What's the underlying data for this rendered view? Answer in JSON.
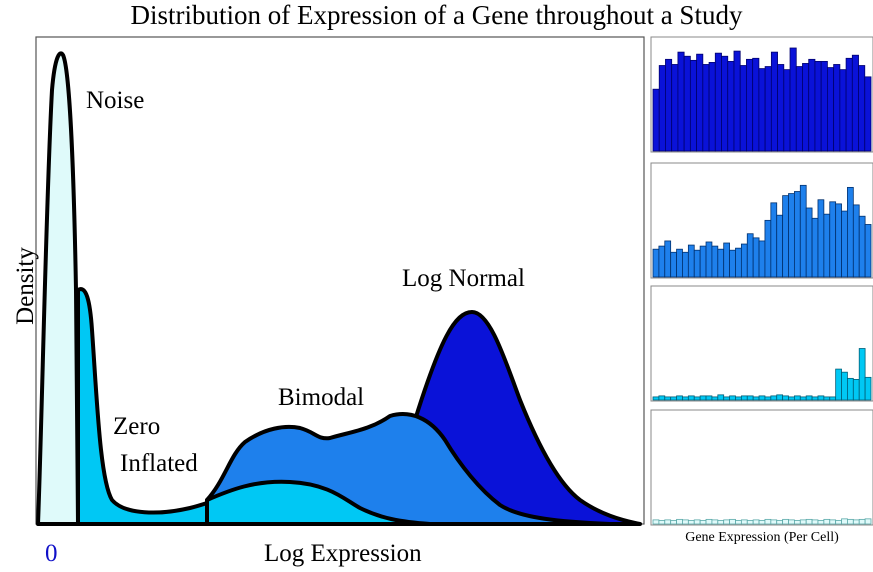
{
  "title": "Distribution of Expression of a Gene throughout a Study",
  "axes": {
    "y_label": "Density",
    "x_label": "Log Expression",
    "x_origin_tick": "0"
  },
  "curve_labels": {
    "noise": "Noise",
    "zero_inflated_line1": "Zero",
    "zero_inflated_line2": "Inflated",
    "bimodal": "Bimodal",
    "log_normal": "Log Normal"
  },
  "histogram_panel": {
    "x_label": "Gene Expression (Per Cell)"
  },
  "colors": {
    "noise": "#dffafa",
    "zero_inflated": "#00c8f4",
    "bimodal": "#1e80ec",
    "log_normal": "#0a12d8",
    "zero_tick": "#1010c8"
  },
  "histograms": [
    {
      "name": "log_normal",
      "fill": "#0a12d8",
      "edge": "#00006e",
      "values": [
        0.6,
        0.83,
        0.89,
        0.84,
        0.96,
        0.92,
        0.88,
        0.94,
        0.84,
        0.86,
        0.95,
        0.92,
        0.87,
        0.97,
        0.83,
        0.89,
        0.9,
        0.8,
        0.82,
        0.96,
        0.84,
        0.79,
        1.0,
        0.82,
        0.85,
        0.89,
        0.87,
        0.87,
        0.81,
        0.84,
        0.79,
        0.9,
        0.93,
        0.83,
        0.72
      ]
    },
    {
      "name": "bimodal",
      "fill": "#1e80ec",
      "edge": "#00306e",
      "values": [
        0.27,
        0.3,
        0.35,
        0.24,
        0.27,
        0.24,
        0.31,
        0.26,
        0.3,
        0.34,
        0.3,
        0.27,
        0.33,
        0.26,
        0.28,
        0.32,
        0.42,
        0.38,
        0.35,
        0.55,
        0.72,
        0.6,
        0.79,
        0.81,
        0.83,
        0.89,
        0.67,
        0.57,
        0.75,
        0.61,
        0.73,
        0.71,
        0.64,
        0.87,
        0.7,
        0.59,
        0.51
      ]
    },
    {
      "name": "zero_inflated",
      "fill": "#00c8f4",
      "edge": "#005f78",
      "values": [
        0.03,
        0.04,
        0.03,
        0.03,
        0.04,
        0.03,
        0.04,
        0.03,
        0.04,
        0.04,
        0.03,
        0.05,
        0.03,
        0.04,
        0.03,
        0.04,
        0.04,
        0.03,
        0.04,
        0.03,
        0.04,
        0.05,
        0.04,
        0.03,
        0.04,
        0.03,
        0.04,
        0.03,
        0.04,
        0.03,
        0.03,
        0.3,
        0.27,
        0.21,
        0.2,
        0.5,
        0.22
      ]
    },
    {
      "name": "noise",
      "fill": "#dffafa",
      "edge": "#5aa8a8",
      "values": [
        0.04,
        0.035,
        0.04,
        0.035,
        0.045,
        0.04,
        0.035,
        0.04,
        0.035,
        0.045,
        0.04,
        0.035,
        0.04,
        0.045,
        0.035,
        0.04,
        0.035,
        0.04,
        0.035,
        0.045,
        0.04,
        0.035,
        0.045,
        0.04,
        0.035,
        0.04,
        0.045,
        0.04,
        0.035,
        0.045,
        0.04,
        0.035,
        0.05,
        0.045,
        0.04,
        0.045,
        0.05
      ]
    }
  ]
}
